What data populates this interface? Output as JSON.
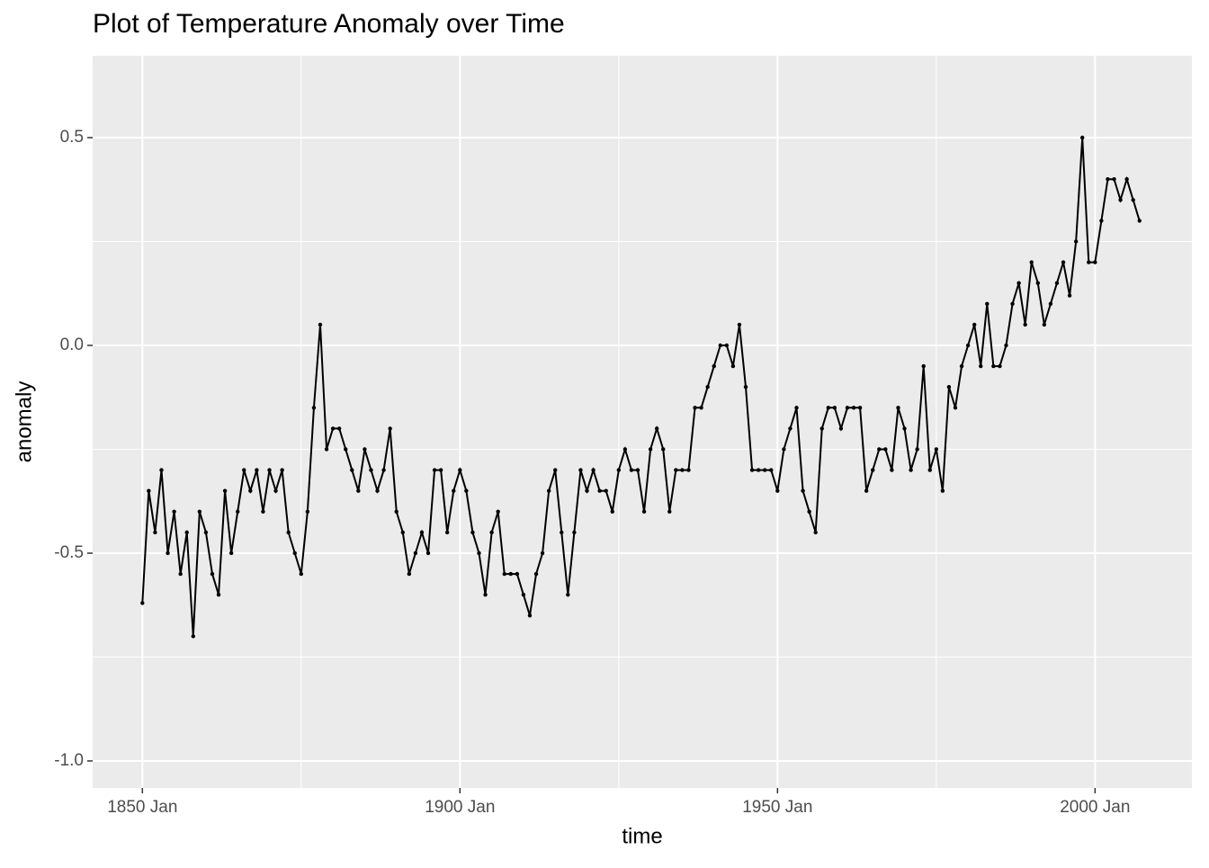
{
  "chart_data": {
    "type": "line",
    "title": "Plot of Temperature Anomaly over Time",
    "xlabel": "time",
    "ylabel": "anomaly",
    "x": [
      "1850-01",
      "1851-01",
      "1852-01",
      "1853-01",
      "1854-01",
      "1855-01",
      "1856-01",
      "1857-01",
      "1858-01",
      "1859-01",
      "1860-01",
      "1861-01",
      "1862-01",
      "1863-01",
      "1864-01",
      "1865-01",
      "1866-01",
      "1867-01",
      "1868-01",
      "1869-01",
      "1870-01",
      "1871-01",
      "1872-01",
      "1873-01",
      "1874-01",
      "1875-01",
      "1876-01",
      "1877-01",
      "1878-01",
      "1879-01",
      "1880-01",
      "1881-01",
      "1882-01",
      "1883-01",
      "1884-01",
      "1885-01",
      "1886-01",
      "1887-01",
      "1888-01",
      "1889-01",
      "1890-01",
      "1891-01",
      "1892-01",
      "1893-01",
      "1894-01",
      "1895-01",
      "1896-01",
      "1897-01",
      "1898-01",
      "1899-01",
      "1900-01",
      "1901-01",
      "1902-01",
      "1903-01",
      "1904-01",
      "1905-01",
      "1906-01",
      "1907-01",
      "1908-01",
      "1909-01",
      "1910-01",
      "1911-01",
      "1912-01",
      "1913-01",
      "1914-01",
      "1915-01",
      "1916-01",
      "1917-01",
      "1918-01",
      "1919-01",
      "1920-01",
      "1921-01",
      "1922-01",
      "1923-01",
      "1924-01",
      "1925-01",
      "1926-01",
      "1927-01",
      "1928-01",
      "1929-01",
      "1930-01",
      "1931-01",
      "1932-01",
      "1933-01",
      "1934-01",
      "1935-01",
      "1936-01",
      "1937-01",
      "1938-01",
      "1939-01",
      "1940-01",
      "1941-01",
      "1942-01",
      "1943-01",
      "1944-01",
      "1945-01",
      "1946-01",
      "1947-01",
      "1948-01",
      "1949-01",
      "1950-01",
      "1951-01",
      "1952-01",
      "1953-01",
      "1954-01",
      "1955-01",
      "1956-01",
      "1957-01",
      "1958-01",
      "1959-01",
      "1960-01",
      "1961-01",
      "1962-01",
      "1963-01",
      "1964-01",
      "1965-01",
      "1966-01",
      "1967-01",
      "1968-01",
      "1969-01",
      "1970-01",
      "1971-01",
      "1972-01",
      "1973-01",
      "1974-01",
      "1975-01",
      "1976-01",
      "1977-01",
      "1978-01",
      "1979-01",
      "1980-01",
      "1981-01",
      "1982-01",
      "1983-01",
      "1984-01",
      "1985-01",
      "1986-01",
      "1987-01",
      "1988-01",
      "1989-01",
      "1990-01",
      "1991-01",
      "1992-01",
      "1993-01",
      "1994-01",
      "1995-01",
      "1996-01",
      "1997-01",
      "1998-01",
      "1999-01",
      "2000-01",
      "2001-01",
      "2002-01",
      "2003-01",
      "2004-01",
      "2005-01",
      "2006-01",
      "2007-01"
    ],
    "series": [
      {
        "name": "anomaly",
        "color": "#000000",
        "values": [
          -0.62,
          -0.35,
          -0.45,
          -0.3,
          -0.5,
          -0.4,
          -0.55,
          -0.45,
          -0.7,
          -0.4,
          -0.45,
          -0.55,
          -0.6,
          -0.35,
          -0.5,
          -0.4,
          -0.3,
          -0.35,
          -0.3,
          -0.4,
          -0.3,
          -0.35,
          -0.3,
          -0.45,
          -0.5,
          -0.55,
          -0.4,
          -0.15,
          0.05,
          -0.25,
          -0.2,
          -0.2,
          -0.25,
          -0.3,
          -0.35,
          -0.25,
          -0.3,
          -0.35,
          -0.3,
          -0.2,
          -0.4,
          -0.45,
          -0.55,
          -0.5,
          -0.45,
          -0.5,
          -0.3,
          -0.3,
          -0.45,
          -0.35,
          -0.3,
          -0.35,
          -0.45,
          -0.5,
          -0.6,
          -0.45,
          -0.4,
          -0.55,
          -0.55,
          -0.55,
          -0.6,
          -0.65,
          -0.55,
          -0.5,
          -0.35,
          -0.3,
          -0.45,
          -0.6,
          -0.45,
          -0.3,
          -0.35,
          -0.3,
          -0.35,
          -0.35,
          -0.4,
          -0.3,
          -0.25,
          -0.3,
          -0.3,
          -0.4,
          -0.25,
          -0.2,
          -0.25,
          -0.4,
          -0.3,
          -0.3,
          -0.3,
          -0.15,
          -0.15,
          -0.1,
          -0.05,
          0.0,
          0.0,
          -0.05,
          0.05,
          -0.1,
          -0.3,
          -0.3,
          -0.3,
          -0.3,
          -0.35,
          -0.25,
          -0.2,
          -0.15,
          -0.35,
          -0.4,
          -0.45,
          -0.2,
          -0.15,
          -0.15,
          -0.2,
          -0.15,
          -0.15,
          -0.15,
          -0.35,
          -0.3,
          -0.25,
          -0.25,
          -0.3,
          -0.15,
          -0.2,
          -0.3,
          -0.25,
          -0.05,
          -0.3,
          -0.25,
          -0.35,
          -0.1,
          -0.15,
          -0.05,
          0.0,
          0.05,
          -0.05,
          0.1,
          -0.05,
          -0.05,
          0.0,
          0.1,
          0.15,
          0.05,
          0.2,
          0.15,
          0.05,
          0.1,
          0.15,
          0.2,
          0.12,
          0.25,
          0.5,
          0.2,
          0.2,
          0.3,
          0.4,
          0.4,
          0.35,
          0.4,
          0.35,
          0.3
        ]
      }
    ],
    "xlim": [
      "1842-03",
      "2015-04"
    ],
    "xticks": [
      {
        "value": "1850-01",
        "label": "1850 Jan"
      },
      {
        "value": "1900-01",
        "label": "1900 Jan"
      },
      {
        "value": "1950-01",
        "label": "1950 Jan"
      },
      {
        "value": "2000-01",
        "label": "2000 Jan"
      }
    ],
    "xminor": [
      "1875-01",
      "1925-01",
      "1975-01"
    ],
    "ylim": [
      -1.065,
      0.697
    ],
    "yticks": [
      {
        "value": -1,
        "label": "-1.0"
      },
      {
        "value": -0.5,
        "label": "-0.5"
      },
      {
        "value": 0,
        "label": "0.0"
      },
      {
        "value": 0.5,
        "label": "0.5"
      }
    ],
    "yminor": [
      -0.75,
      -0.25,
      0.25
    ],
    "grid": true
  }
}
